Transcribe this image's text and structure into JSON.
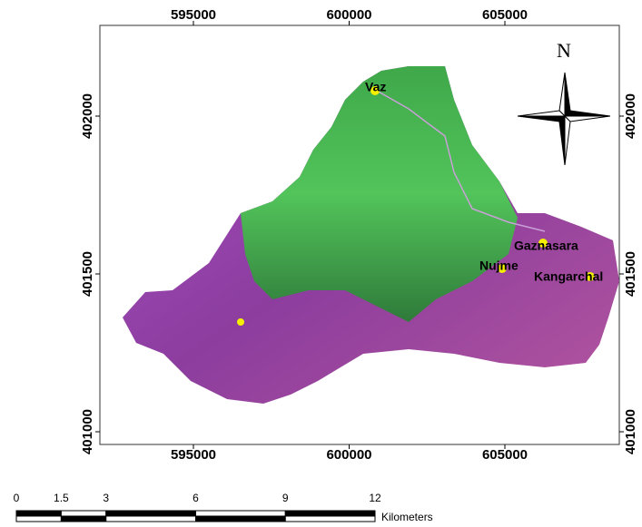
{
  "x_ticks": [
    595000,
    600000,
    605000
  ],
  "y_ticks": [
    402000,
    401500,
    401000
  ],
  "north": "N",
  "places": [
    {
      "label": "Vaz"
    },
    {
      "label": "Gaznasara"
    },
    {
      "label": "Nujme"
    },
    {
      "label": "Kangarchal"
    }
  ],
  "scale_bar": {
    "ticks": [
      0,
      1.5,
      3,
      6,
      9,
      12
    ],
    "unit": "Kilometers"
  }
}
